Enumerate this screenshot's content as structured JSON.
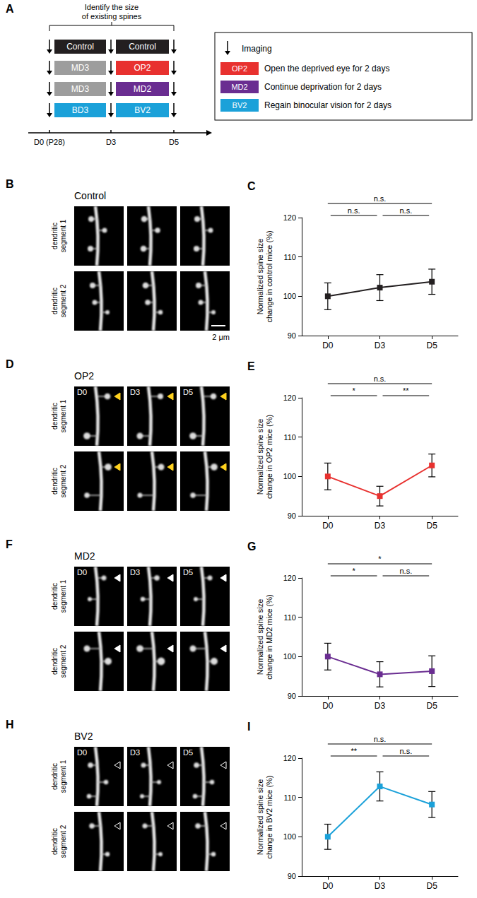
{
  "diagram": {
    "panel": "A",
    "bracket_label": [
      "Identify the size",
      "of existing spines"
    ],
    "rows": [
      [
        {
          "label": "Control",
          "color": "#231f20"
        },
        {
          "label": "Control",
          "color": "#231f20"
        }
      ],
      [
        {
          "label": "MD3",
          "color": "#9d9d9d"
        },
        {
          "label": "OP2",
          "color": "#e8312f"
        }
      ],
      [
        {
          "label": "MD3",
          "color": "#9d9d9d"
        },
        {
          "label": "MD2",
          "color": "#6a2d91"
        }
      ],
      [
        {
          "label": "BD3",
          "color": "#1ba1d9"
        },
        {
          "label": "BV2",
          "color": "#1ba1d9"
        }
      ]
    ],
    "timeline": [
      "D0 (P28)",
      "D3",
      "D5"
    ],
    "legend": {
      "imaging": "Imaging",
      "items": [
        {
          "label": "OP2",
          "color": "#e8312f",
          "text": "Open the deprived eye for 2 days"
        },
        {
          "label": "MD2",
          "color": "#6a2d91",
          "text": "Continue deprivation for 2 days"
        },
        {
          "label": "BV2",
          "color": "#1ba1d9",
          "text": "Regain binocular vision for 2 days"
        }
      ]
    }
  },
  "image_panels": [
    {
      "panel": "B",
      "title": "Control",
      "columns": [],
      "rows": [
        "dendritic segment 1",
        "dendritic segment 2"
      ],
      "scale_bar": "2 μm"
    },
    {
      "panel": "D",
      "title": "OP2",
      "columns": [
        "D0",
        "D3",
        "D5"
      ],
      "rows": [
        "dendritic segment 1",
        "dendritic segment 2"
      ]
    },
    {
      "panel": "F",
      "title": "MD2",
      "columns": [
        "D0",
        "D3",
        "D5"
      ],
      "rows": [
        "dendritic segment 1",
        "dendritic segment 2"
      ]
    },
    {
      "panel": "H",
      "title": "BV2",
      "columns": [
        "D0",
        "D3",
        "D5"
      ],
      "rows": [
        "dendritic segment 1",
        "dendritic segment 2"
      ]
    }
  ],
  "chart_data": [
    {
      "type": "line",
      "title": "C",
      "ylabel": "Normalized spine size\nchange in control mice (%)",
      "categories": [
        "D0",
        "D3",
        "D5"
      ],
      "values": [
        100,
        102.2,
        103.7
      ],
      "errors": [
        3.4,
        3.3,
        3.2
      ],
      "color": "#231f20",
      "marker": "square",
      "ylim": [
        90,
        120
      ],
      "yticks": [
        90,
        100,
        110,
        120
      ],
      "annotations": [
        {
          "from": "D0",
          "to": "D5",
          "label": "n.s."
        },
        {
          "from": "D0",
          "to": "D3",
          "label": "n.s."
        },
        {
          "from": "D3",
          "to": "D5",
          "label": "n.s."
        }
      ]
    },
    {
      "type": "line",
      "title": "E",
      "ylabel": "Normalized spine size\nchange in OP2 mice (%)",
      "categories": [
        "D0",
        "D3",
        "D5"
      ],
      "values": [
        100,
        95,
        102.8
      ],
      "errors": [
        3.4,
        2.5,
        2.9
      ],
      "color": "#e8312f",
      "marker": "square",
      "ylim": [
        90,
        120
      ],
      "yticks": [
        90,
        100,
        110,
        120
      ],
      "annotations": [
        {
          "from": "D0",
          "to": "D5",
          "label": "n.s."
        },
        {
          "from": "D0",
          "to": "D3",
          "label": "*"
        },
        {
          "from": "D3",
          "to": "D5",
          "label": "**"
        }
      ]
    },
    {
      "type": "line",
      "title": "G",
      "ylabel": "Normalized spine size\nchange in MD2 mice (%)",
      "categories": [
        "D0",
        "D3",
        "D5"
      ],
      "values": [
        100,
        95.5,
        96.3
      ],
      "errors": [
        3.4,
        3.2,
        3.9
      ],
      "color": "#6a2d91",
      "marker": "square",
      "ylim": [
        90,
        120
      ],
      "yticks": [
        90,
        100,
        110,
        120
      ],
      "annotations": [
        {
          "from": "D0",
          "to": "D5",
          "label": "*"
        },
        {
          "from": "D0",
          "to": "D3",
          "label": "*"
        },
        {
          "from": "D3",
          "to": "D5",
          "label": "n.s."
        }
      ]
    },
    {
      "type": "line",
      "title": "I",
      "ylabel": "Normalized spine size\nchange in BV2 mice (%)",
      "categories": [
        "D0",
        "D3",
        "D5"
      ],
      "values": [
        100,
        112.8,
        108.2
      ],
      "errors": [
        3.2,
        3.7,
        3.3
      ],
      "color": "#1ba1d9",
      "marker": "square",
      "ylim": [
        90,
        120
      ],
      "yticks": [
        90,
        100,
        110,
        120
      ],
      "annotations": [
        {
          "from": "D0",
          "to": "D5",
          "label": "n.s."
        },
        {
          "from": "D0",
          "to": "D3",
          "label": "**"
        },
        {
          "from": "D3",
          "to": "D5",
          "label": "n.s."
        }
      ]
    }
  ]
}
